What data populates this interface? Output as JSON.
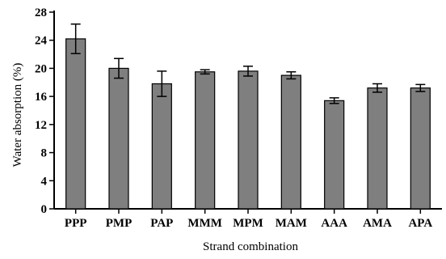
{
  "chart_data": {
    "type": "bar",
    "title": "",
    "xlabel": "Strand combination",
    "ylabel": "Water absorption (%)",
    "ylim": [
      0,
      28
    ],
    "yticks": [
      0,
      4,
      8,
      12,
      16,
      20,
      24,
      28
    ],
    "ytick_labels": [
      "0",
      "4",
      "8",
      "12",
      "16",
      "20",
      "24",
      "28"
    ],
    "categories": [
      "PPP",
      "PMP",
      "PAP",
      "MMM",
      "MPM",
      "MAM",
      "AAA",
      "AMA",
      "APA"
    ],
    "values": [
      24.2,
      20.0,
      17.8,
      19.5,
      19.6,
      19.0,
      15.4,
      17.2,
      17.2
    ],
    "errors": [
      2.1,
      1.4,
      1.8,
      0.3,
      0.7,
      0.5,
      0.4,
      0.6,
      0.5
    ],
    "bar_color": "#7f7f7f",
    "grid": false,
    "legend": "none"
  }
}
